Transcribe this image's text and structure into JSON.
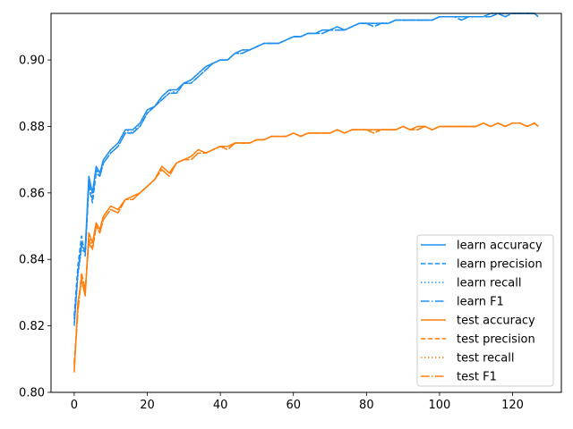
{
  "chart_data": {
    "type": "line",
    "title": "",
    "xlabel": "",
    "ylabel": "",
    "xlim": [
      -6.35,
      133.35
    ],
    "ylim": [
      0.8,
      0.914
    ],
    "xticks": [
      0,
      20,
      40,
      60,
      80,
      100,
      120
    ],
    "yticks": [
      0.8,
      0.82,
      0.84,
      0.86,
      0.88,
      0.9
    ],
    "ytick_labels": [
      "0.80",
      "0.82",
      "0.84",
      "0.86",
      "0.88",
      "0.90"
    ],
    "grid": false,
    "legend_position": "lower-right",
    "colors": {
      "learn": "#1f8ff0",
      "test": "#ff7f0e"
    },
    "x": [
      0,
      1,
      2,
      3,
      4,
      5,
      6,
      7,
      8,
      10,
      12,
      14,
      16,
      18,
      20,
      22,
      24,
      26,
      28,
      30,
      32,
      34,
      36,
      38,
      40,
      42,
      44,
      46,
      48,
      50,
      52,
      54,
      56,
      58,
      60,
      62,
      64,
      66,
      68,
      70,
      72,
      74,
      76,
      78,
      80,
      82,
      84,
      86,
      88,
      90,
      92,
      94,
      96,
      98,
      100,
      102,
      104,
      106,
      108,
      110,
      112,
      114,
      116,
      118,
      120,
      122,
      124,
      126,
      127
    ],
    "series": [
      {
        "name": "learn accuracy",
        "group": "learn",
        "style": "solid",
        "values": [
          0.82,
          0.836,
          0.844,
          0.843,
          0.865,
          0.86,
          0.868,
          0.866,
          0.87,
          0.873,
          0.875,
          0.879,
          0.879,
          0.881,
          0.885,
          0.886,
          0.889,
          0.891,
          0.891,
          0.893,
          0.894,
          0.896,
          0.898,
          0.899,
          0.9,
          0.9,
          0.902,
          0.903,
          0.903,
          0.904,
          0.905,
          0.905,
          0.905,
          0.906,
          0.907,
          0.907,
          0.908,
          0.908,
          0.909,
          0.909,
          0.91,
          0.909,
          0.91,
          0.911,
          0.911,
          0.911,
          0.911,
          0.911,
          0.912,
          0.912,
          0.912,
          0.912,
          0.912,
          0.912,
          0.913,
          0.913,
          0.913,
          0.913,
          0.913,
          0.913,
          0.913,
          0.914,
          0.914,
          0.914,
          0.914,
          0.914,
          0.914,
          0.914,
          0.913
        ]
      },
      {
        "name": "learn precision",
        "group": "learn",
        "style": "dashed",
        "values": [
          0.823,
          0.838,
          0.847,
          0.841,
          0.862,
          0.857,
          0.866,
          0.865,
          0.869,
          0.872,
          0.874,
          0.878,
          0.878,
          0.88,
          0.884,
          0.886,
          0.888,
          0.89,
          0.89,
          0.893,
          0.893,
          0.895,
          0.897,
          0.899,
          0.9,
          0.9,
          0.902,
          0.902,
          0.903,
          0.904,
          0.905,
          0.905,
          0.905,
          0.906,
          0.907,
          0.907,
          0.908,
          0.908,
          0.908,
          0.909,
          0.909,
          0.909,
          0.91,
          0.911,
          0.911,
          0.91,
          0.911,
          0.911,
          0.912,
          0.912,
          0.912,
          0.912,
          0.912,
          0.912,
          0.913,
          0.913,
          0.913,
          0.912,
          0.913,
          0.913,
          0.913,
          0.913,
          0.914,
          0.913,
          0.914,
          0.914,
          0.914,
          0.914,
          0.913
        ]
      },
      {
        "name": "learn recall",
        "group": "learn",
        "style": "dotted",
        "values": [
          0.821,
          0.835,
          0.843,
          0.842,
          0.864,
          0.859,
          0.867,
          0.866,
          0.87,
          0.873,
          0.875,
          0.879,
          0.878,
          0.881,
          0.885,
          0.886,
          0.889,
          0.891,
          0.89,
          0.893,
          0.894,
          0.896,
          0.898,
          0.899,
          0.9,
          0.9,
          0.902,
          0.903,
          0.903,
          0.904,
          0.905,
          0.905,
          0.905,
          0.906,
          0.907,
          0.907,
          0.908,
          0.908,
          0.909,
          0.909,
          0.91,
          0.909,
          0.91,
          0.911,
          0.911,
          0.911,
          0.911,
          0.911,
          0.912,
          0.912,
          0.912,
          0.912,
          0.912,
          0.912,
          0.913,
          0.913,
          0.913,
          0.913,
          0.913,
          0.913,
          0.913,
          0.914,
          0.914,
          0.914,
          0.914,
          0.914,
          0.914,
          0.914,
          0.913
        ]
      },
      {
        "name": "learn F1",
        "group": "learn",
        "style": "dashdot",
        "values": [
          0.822,
          0.836,
          0.845,
          0.842,
          0.863,
          0.858,
          0.867,
          0.865,
          0.869,
          0.872,
          0.874,
          0.878,
          0.878,
          0.88,
          0.884,
          0.886,
          0.888,
          0.89,
          0.89,
          0.893,
          0.893,
          0.895,
          0.897,
          0.899,
          0.9,
          0.9,
          0.902,
          0.902,
          0.903,
          0.904,
          0.905,
          0.905,
          0.905,
          0.906,
          0.907,
          0.907,
          0.908,
          0.908,
          0.908,
          0.909,
          0.909,
          0.909,
          0.91,
          0.911,
          0.911,
          0.91,
          0.911,
          0.911,
          0.912,
          0.912,
          0.912,
          0.912,
          0.912,
          0.912,
          0.913,
          0.913,
          0.913,
          0.912,
          0.913,
          0.913,
          0.913,
          0.913,
          0.914,
          0.913,
          0.914,
          0.914,
          0.914,
          0.914,
          0.913
        ]
      },
      {
        "name": "test accuracy",
        "group": "test",
        "style": "solid",
        "values": [
          0.806,
          0.827,
          0.834,
          0.829,
          0.848,
          0.845,
          0.851,
          0.849,
          0.853,
          0.856,
          0.855,
          0.858,
          0.859,
          0.86,
          0.862,
          0.864,
          0.868,
          0.866,
          0.869,
          0.87,
          0.871,
          0.873,
          0.872,
          0.873,
          0.874,
          0.874,
          0.875,
          0.875,
          0.875,
          0.876,
          0.876,
          0.877,
          0.877,
          0.877,
          0.878,
          0.877,
          0.878,
          0.878,
          0.878,
          0.878,
          0.879,
          0.878,
          0.879,
          0.879,
          0.879,
          0.879,
          0.879,
          0.879,
          0.879,
          0.88,
          0.879,
          0.88,
          0.88,
          0.879,
          0.88,
          0.88,
          0.88,
          0.88,
          0.88,
          0.88,
          0.881,
          0.88,
          0.881,
          0.88,
          0.881,
          0.881,
          0.88,
          0.881,
          0.88
        ]
      },
      {
        "name": "test precision",
        "group": "test",
        "style": "dashed",
        "values": [
          0.809,
          0.825,
          0.836,
          0.831,
          0.845,
          0.843,
          0.85,
          0.848,
          0.852,
          0.855,
          0.854,
          0.858,
          0.858,
          0.86,
          0.862,
          0.864,
          0.867,
          0.865,
          0.869,
          0.87,
          0.87,
          0.872,
          0.872,
          0.873,
          0.874,
          0.873,
          0.875,
          0.875,
          0.875,
          0.876,
          0.876,
          0.877,
          0.877,
          0.877,
          0.878,
          0.877,
          0.878,
          0.878,
          0.878,
          0.878,
          0.879,
          0.878,
          0.879,
          0.879,
          0.879,
          0.878,
          0.879,
          0.879,
          0.879,
          0.88,
          0.879,
          0.879,
          0.88,
          0.879,
          0.88,
          0.88,
          0.88,
          0.88,
          0.88,
          0.88,
          0.881,
          0.88,
          0.881,
          0.88,
          0.881,
          0.881,
          0.88,
          0.881,
          0.88
        ]
      },
      {
        "name": "test recall",
        "group": "test",
        "style": "dotted",
        "values": [
          0.807,
          0.826,
          0.833,
          0.83,
          0.847,
          0.844,
          0.851,
          0.849,
          0.853,
          0.856,
          0.855,
          0.858,
          0.859,
          0.86,
          0.862,
          0.864,
          0.868,
          0.866,
          0.869,
          0.87,
          0.871,
          0.873,
          0.872,
          0.873,
          0.874,
          0.874,
          0.875,
          0.875,
          0.875,
          0.876,
          0.876,
          0.877,
          0.877,
          0.877,
          0.878,
          0.877,
          0.878,
          0.878,
          0.878,
          0.878,
          0.879,
          0.878,
          0.879,
          0.879,
          0.879,
          0.879,
          0.879,
          0.879,
          0.879,
          0.88,
          0.879,
          0.88,
          0.88,
          0.879,
          0.88,
          0.88,
          0.88,
          0.88,
          0.88,
          0.88,
          0.881,
          0.88,
          0.881,
          0.88,
          0.881,
          0.881,
          0.88,
          0.881,
          0.88
        ]
      },
      {
        "name": "test F1",
        "group": "test",
        "style": "dashdot",
        "values": [
          0.808,
          0.824,
          0.835,
          0.83,
          0.846,
          0.843,
          0.85,
          0.848,
          0.852,
          0.855,
          0.854,
          0.858,
          0.858,
          0.86,
          0.862,
          0.864,
          0.867,
          0.865,
          0.869,
          0.87,
          0.87,
          0.872,
          0.872,
          0.873,
          0.874,
          0.873,
          0.875,
          0.875,
          0.875,
          0.876,
          0.876,
          0.877,
          0.877,
          0.877,
          0.878,
          0.877,
          0.878,
          0.878,
          0.878,
          0.878,
          0.879,
          0.878,
          0.879,
          0.879,
          0.879,
          0.878,
          0.879,
          0.879,
          0.879,
          0.88,
          0.879,
          0.879,
          0.88,
          0.879,
          0.88,
          0.88,
          0.88,
          0.88,
          0.88,
          0.88,
          0.881,
          0.88,
          0.881,
          0.88,
          0.881,
          0.881,
          0.88,
          0.881,
          0.88
        ]
      }
    ]
  }
}
